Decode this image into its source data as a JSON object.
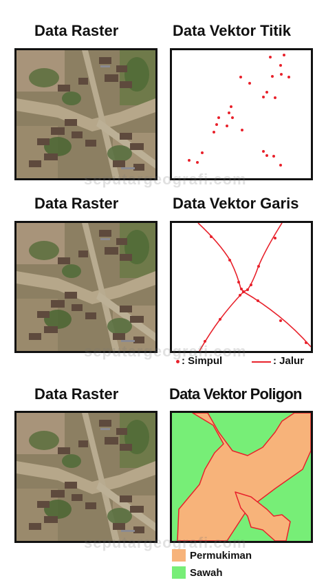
{
  "rows": [
    {
      "raster_title": "Data Raster",
      "vector_title": "Data Vektor Titik"
    },
    {
      "raster_title": "Data Raster",
      "vector_title": "Data Vektor Garis"
    },
    {
      "raster_title": "Data Raster",
      "vector_title": "Data Vektor Poligon"
    }
  ],
  "watermark": "seputargeografi.com",
  "line_legend": {
    "point_label": ": Simpul",
    "line_label": ": Jalur"
  },
  "polygon_legend": {
    "permukiman_label": "Permukiman",
    "sawah_label": "Sawah"
  },
  "colors": {
    "vector_red": "#e8212b",
    "permukiman": "#f7b37a",
    "sawah": "#77ee77",
    "frame": "#111111"
  }
}
